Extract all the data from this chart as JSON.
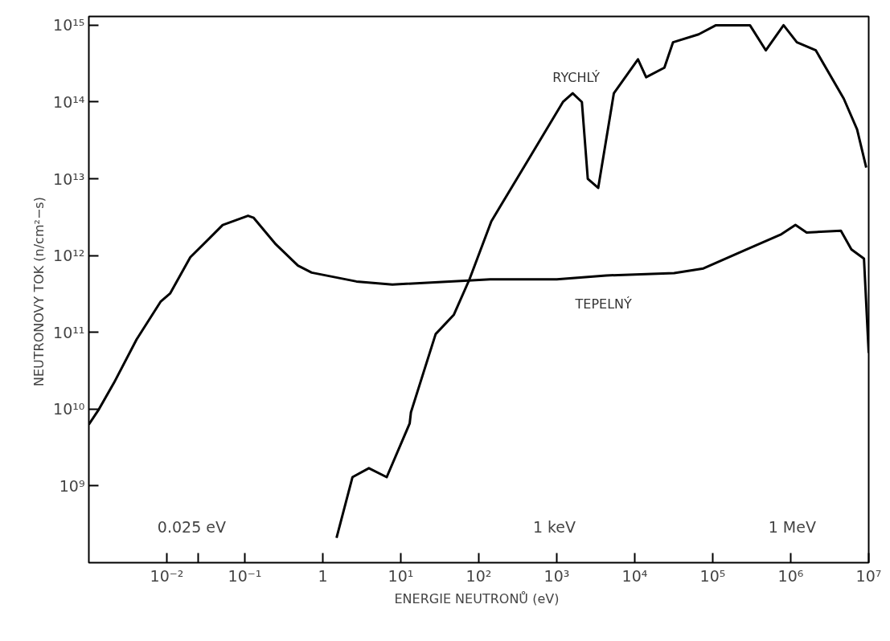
{
  "chart_data": {
    "type": "line",
    "xlabel": "ENERGIE NEUTRONŮ  (eV)",
    "ylabel": "NEUTRONOVY TOK  (n/cm²−s)",
    "log": "xy",
    "grid": false,
    "marker": "none",
    "line_style": "solid",
    "xlim": [
      0.001,
      10000000
    ],
    "ylim": [
      100000000,
      1300000000000000
    ],
    "xticks": [
      {
        "value": 0.01,
        "label": "10⁻²"
      },
      {
        "value": 0.025,
        "label": null
      },
      {
        "value": 0.1,
        "label": "10⁻¹"
      },
      1,
      {
        "value": 10,
        "label": "10¹"
      },
      {
        "value": 100,
        "label": "10²"
      },
      {
        "value": 1000,
        "label": "10³"
      },
      {
        "value": 10000,
        "label": "10⁴"
      },
      {
        "value": 100000,
        "label": "10⁵"
      },
      {
        "value": 1000000,
        "label": "10⁶"
      },
      {
        "value": 10000000,
        "label": "10⁷"
      }
    ],
    "yticks": [
      {
        "value": 1000000000,
        "label": "10⁹"
      },
      {
        "value": 10000000000,
        "label": "10¹⁰"
      },
      {
        "value": 100000000000,
        "label": "10¹¹"
      },
      {
        "value": 1000000000000,
        "label": "10¹²"
      },
      {
        "value": 10000000000000,
        "label": "10¹³"
      },
      {
        "value": 100000000000000,
        "label": "10¹⁴"
      },
      {
        "value": 1000000000000000,
        "label": "10¹⁵"
      }
    ],
    "annotations": [
      "0.025  eV",
      "1  keV",
      "1  MeV"
    ],
    "series": [
      {
        "name": "TEPELNÝ",
        "color": "#000000",
        "x": [
          0.001,
          0.00135,
          0.0021,
          0.0041,
          0.0083,
          0.011,
          0.02,
          0.052,
          0.11,
          0.13,
          0.25,
          0.48,
          0.72,
          2.7,
          7.8,
          66,
          140,
          1000,
          4300,
          32000,
          76000,
          270000,
          760000,
          1150000,
          1600000,
          4400000,
          6000000,
          8700000,
          10000000
        ],
        "values": [
          6300000000.0,
          10000000000.0,
          22000000000.0,
          81000000000.0,
          250000000000.0,
          320000000000.0,
          950000000000.0,
          2500000000000.0,
          3300000000000.0,
          3100000000000.0,
          1400000000000.0,
          740000000000.0,
          600000000000.0,
          460000000000.0,
          420000000000.0,
          470000000000.0,
          490000000000.0,
          490000000000.0,
          550000000000.0,
          590000000000.0,
          680000000000.0,
          1200000000000.0,
          1900000000000.0,
          2500000000000.0,
          2000000000000.0,
          2100000000000.0,
          1200000000000.0,
          910000000000.0,
          54000000000.0
        ]
      },
      {
        "name": "RYCHLÝ",
        "color": "#000000",
        "x": [
          1.5,
          2.4,
          3.9,
          6.6,
          13,
          13.5,
          28,
          48,
          76,
          145,
          450,
          1200,
          1600,
          2100,
          2500,
          3400,
          5400,
          11000,
          14000,
          24000,
          31000,
          66000,
          110000,
          300000,
          480000,
          810000,
          1200000,
          2100000,
          4800000,
          7100000,
          9300000
        ],
        "values": [
          210000000.0,
          1300000000.0,
          1700000000.0,
          1300000000.0,
          6500000000.0,
          9100000000.0,
          95000000000.0,
          170000000000.0,
          490000000000.0,
          2800000000000.0,
          19000000000000.0,
          100000000000000.0,
          130000000000000.0,
          100000000000000.0,
          10000000000000.0,
          7600000000000.0,
          130000000000000.0,
          360000000000000.0,
          210000000000000.0,
          280000000000000.0,
          600000000000000.0,
          760000000000000.0,
          1000000000000000.0,
          1000000000000000.0,
          470000000000000.0,
          1000000000000000.0,
          600000000000000.0,
          470000000000000.0,
          110000000000000.0,
          44000000000000.0,
          14000000000000.0
        ]
      }
    ]
  }
}
